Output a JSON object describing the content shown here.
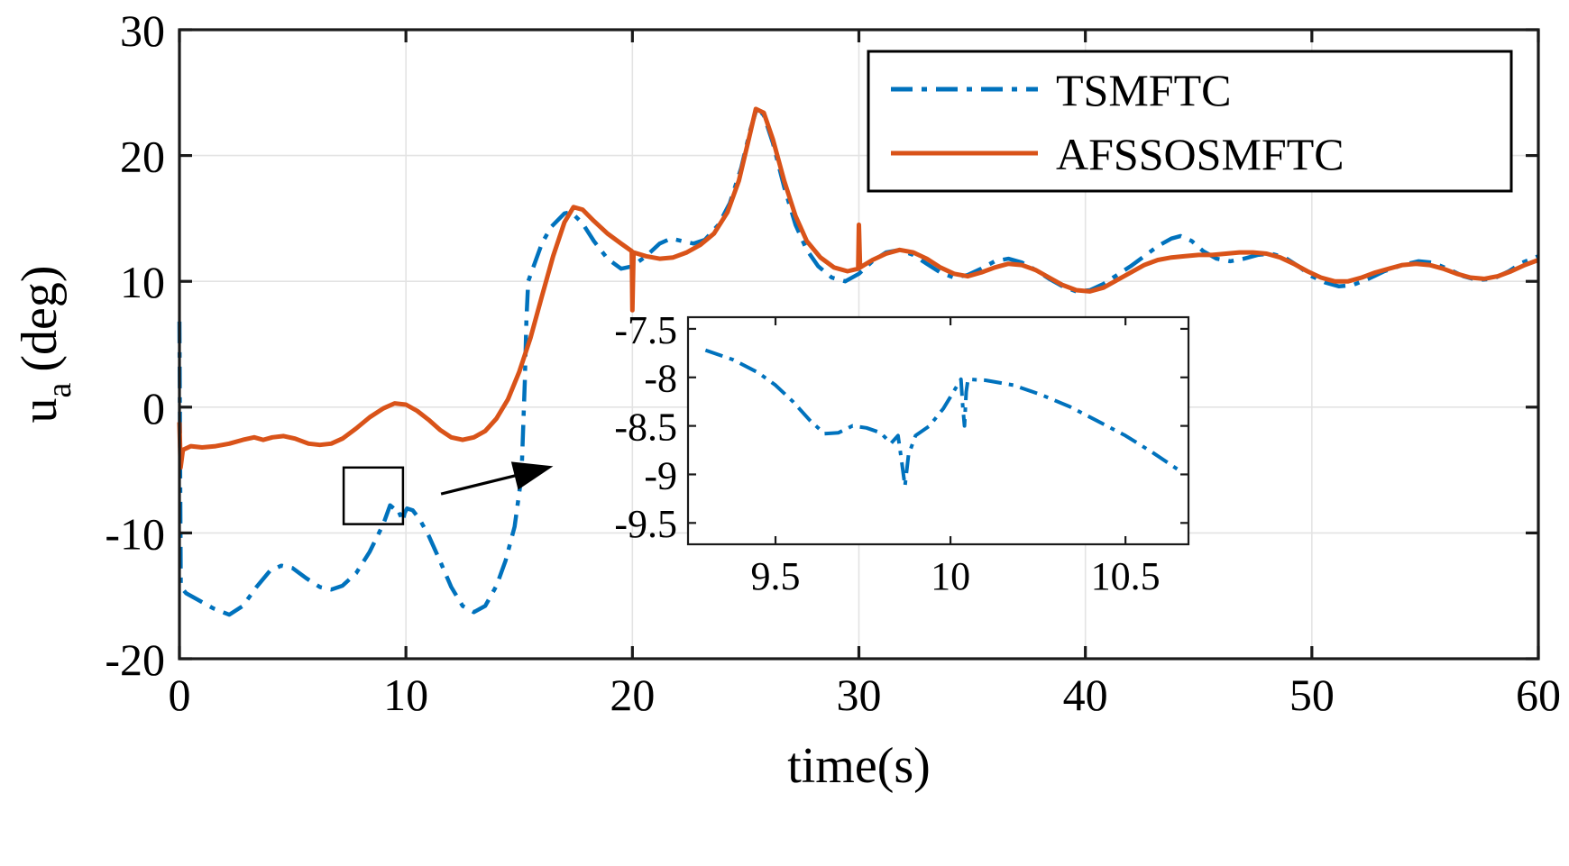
{
  "figure": {
    "background": "#ffffff"
  },
  "chart_data": {
    "type": "line",
    "title": "",
    "xlabel": "time(s)",
    "ylabel": {
      "base": "u",
      "sub": "a",
      "rest": "(deg)"
    },
    "xlim": [
      0,
      60
    ],
    "ylim": [
      -20,
      30
    ],
    "grid": true,
    "axis_color": "#1a1a1a",
    "grid_color": "#e3e3e3",
    "x_ticks": {
      "values": [
        0,
        10,
        20,
        30,
        40,
        50,
        60
      ],
      "labels": [
        "0",
        "10",
        "20",
        "30",
        "40",
        "50",
        "60"
      ]
    },
    "y_ticks": {
      "values": [
        -20,
        -10,
        0,
        10,
        20,
        30
      ],
      "labels": [
        "-20",
        "-10",
        "0",
        "10",
        "20",
        "30"
      ]
    },
    "legend": {
      "position": "top-right",
      "entries": [
        {
          "label": "TSMFTC",
          "color": "#0072BD",
          "style": "dash-dot"
        },
        {
          "label": "AFSSOSMFTC",
          "color": "#D95319",
          "style": "solid"
        }
      ]
    },
    "series": [
      {
        "name": "TSMFTC",
        "color": "#0072BD",
        "style": "dash-dot",
        "width": 4.5,
        "points": [
          [
            0,
            6.8
          ],
          [
            0.03,
            -5
          ],
          [
            0.06,
            -14.3
          ],
          [
            0.3,
            -14.8
          ],
          [
            0.8,
            -15.3
          ],
          [
            1.5,
            -16
          ],
          [
            2.2,
            -16.5
          ],
          [
            2.8,
            -15.8
          ],
          [
            3.4,
            -14.3
          ],
          [
            4,
            -13
          ],
          [
            4.5,
            -12.6
          ],
          [
            5,
            -12.8
          ],
          [
            5.6,
            -13.6
          ],
          [
            6.2,
            -14.3
          ],
          [
            6.7,
            -14.5
          ],
          [
            7.2,
            -14.2
          ],
          [
            7.8,
            -13.2
          ],
          [
            8.4,
            -11.5
          ],
          [
            9,
            -9.3
          ],
          [
            9.3,
            -7.8
          ],
          [
            9.5,
            -8.1
          ],
          [
            9.62,
            -8.6
          ],
          [
            9.75,
            -8.5
          ],
          [
            9.85,
            -9.1
          ],
          [
            9.95,
            -8.4
          ],
          [
            10.05,
            -8.05
          ],
          [
            10.3,
            -8.2
          ],
          [
            10.6,
            -8.9
          ],
          [
            11,
            -10.2
          ],
          [
            11.5,
            -12.2
          ],
          [
            12,
            -14.3
          ],
          [
            12.5,
            -15.8
          ],
          [
            13,
            -16.3
          ],
          [
            13.5,
            -15.8
          ],
          [
            14,
            -14.2
          ],
          [
            14.4,
            -12.2
          ],
          [
            14.8,
            -9.5
          ],
          [
            15.1,
            -5.5
          ],
          [
            15.25,
            2
          ],
          [
            15.32,
            7
          ],
          [
            15.4,
            10
          ],
          [
            15.6,
            11
          ],
          [
            16,
            13
          ],
          [
            16.4,
            14.3
          ],
          [
            17,
            15.4
          ],
          [
            17.3,
            15.5
          ],
          [
            17.8,
            14.6
          ],
          [
            18.3,
            13.2
          ],
          [
            18.9,
            11.8
          ],
          [
            19.5,
            11
          ],
          [
            20,
            11.2
          ],
          [
            20.6,
            12
          ],
          [
            21.2,
            13
          ],
          [
            21.7,
            13.4
          ],
          [
            22.2,
            13.2
          ],
          [
            22.7,
            13
          ],
          [
            23.2,
            13.3
          ],
          [
            23.8,
            14.5
          ],
          [
            24.3,
            16.2
          ],
          [
            24.8,
            19
          ],
          [
            25.2,
            22
          ],
          [
            25.5,
            23.8
          ],
          [
            25.8,
            23.2
          ],
          [
            26.2,
            21
          ],
          [
            26.7,
            17.5
          ],
          [
            27.2,
            14.5
          ],
          [
            27.7,
            12.5
          ],
          [
            28.2,
            11.2
          ],
          [
            28.8,
            10.3
          ],
          [
            29.4,
            10
          ],
          [
            30,
            10.6
          ],
          [
            30.6,
            11.6
          ],
          [
            31.2,
            12.3
          ],
          [
            31.8,
            12.5
          ],
          [
            32.4,
            12.1
          ],
          [
            33,
            11.4
          ],
          [
            33.6,
            10.7
          ],
          [
            34.2,
            10.3
          ],
          [
            34.8,
            10.5
          ],
          [
            35.4,
            11
          ],
          [
            36,
            11.6
          ],
          [
            36.6,
            11.8
          ],
          [
            37.2,
            11.5
          ],
          [
            37.8,
            10.9
          ],
          [
            38.4,
            10.2
          ],
          [
            39,
            9.6
          ],
          [
            39.6,
            9.2
          ],
          [
            40.2,
            9.3
          ],
          [
            40.8,
            9.8
          ],
          [
            41.4,
            10.5
          ],
          [
            42,
            11.2
          ],
          [
            42.6,
            12
          ],
          [
            43.2,
            12.8
          ],
          [
            43.8,
            13.4
          ],
          [
            44.2,
            13.6
          ],
          [
            44.7,
            13.2
          ],
          [
            45.2,
            12.4
          ],
          [
            45.8,
            11.8
          ],
          [
            46.4,
            11.6
          ],
          [
            47,
            11.8
          ],
          [
            47.6,
            12.1
          ],
          [
            48.2,
            12.2
          ],
          [
            48.8,
            11.9
          ],
          [
            49.4,
            11.2
          ],
          [
            50,
            10.4
          ],
          [
            50.6,
            9.9
          ],
          [
            51.2,
            9.6
          ],
          [
            51.8,
            9.7
          ],
          [
            52.5,
            10.2
          ],
          [
            53.2,
            10.8
          ],
          [
            54,
            11.3
          ],
          [
            54.7,
            11.6
          ],
          [
            55.3,
            11.5
          ],
          [
            56,
            11
          ],
          [
            56.7,
            10.4
          ],
          [
            57.3,
            10.1
          ],
          [
            58,
            10.2
          ],
          [
            58.7,
            10.8
          ],
          [
            59.3,
            11.5
          ],
          [
            60,
            12
          ]
        ]
      },
      {
        "name": "AFSSOSMFTC",
        "color": "#D95319",
        "style": "solid",
        "width": 5,
        "points": [
          [
            0,
            -1.2
          ],
          [
            0.05,
            -4.8
          ],
          [
            0.15,
            -3.4
          ],
          [
            0.5,
            -3.1
          ],
          [
            1,
            -3.2
          ],
          [
            1.6,
            -3.1
          ],
          [
            2.2,
            -2.9
          ],
          [
            2.8,
            -2.6
          ],
          [
            3.3,
            -2.4
          ],
          [
            3.7,
            -2.6
          ],
          [
            4.1,
            -2.4
          ],
          [
            4.6,
            -2.3
          ],
          [
            5.1,
            -2.5
          ],
          [
            5.7,
            -2.9
          ],
          [
            6.2,
            -3
          ],
          [
            6.7,
            -2.9
          ],
          [
            7.2,
            -2.5
          ],
          [
            7.8,
            -1.7
          ],
          [
            8.4,
            -0.8
          ],
          [
            9,
            -0.1
          ],
          [
            9.5,
            0.3
          ],
          [
            10,
            0.2
          ],
          [
            10.5,
            -0.3
          ],
          [
            11,
            -1
          ],
          [
            11.5,
            -1.8
          ],
          [
            12,
            -2.4
          ],
          [
            12.5,
            -2.6
          ],
          [
            13,
            -2.4
          ],
          [
            13.5,
            -1.9
          ],
          [
            14,
            -0.9
          ],
          [
            14.5,
            0.6
          ],
          [
            15,
            2.8
          ],
          [
            15.5,
            5.5
          ],
          [
            16,
            8.8
          ],
          [
            16.5,
            12
          ],
          [
            17,
            14.7
          ],
          [
            17.4,
            15.9
          ],
          [
            17.8,
            15.7
          ],
          [
            18.3,
            14.8
          ],
          [
            18.9,
            13.8
          ],
          [
            19.5,
            13
          ],
          [
            19.97,
            12.4
          ],
          [
            20,
            7.7
          ],
          [
            20.05,
            12.3
          ],
          [
            20.6,
            12
          ],
          [
            21.2,
            11.8
          ],
          [
            21.8,
            11.9
          ],
          [
            22.4,
            12.3
          ],
          [
            23,
            12.9
          ],
          [
            23.6,
            13.8
          ],
          [
            24.2,
            15.5
          ],
          [
            24.7,
            18
          ],
          [
            25.1,
            21
          ],
          [
            25.45,
            23.7
          ],
          [
            25.8,
            23.4
          ],
          [
            26.2,
            21.3
          ],
          [
            26.7,
            18
          ],
          [
            27.2,
            15.2
          ],
          [
            27.7,
            13.2
          ],
          [
            28.3,
            11.9
          ],
          [
            28.9,
            11.1
          ],
          [
            29.5,
            10.8
          ],
          [
            29.97,
            11
          ],
          [
            30,
            14.5
          ],
          [
            30.05,
            11.1
          ],
          [
            30.6,
            11.7
          ],
          [
            31.2,
            12.2
          ],
          [
            31.8,
            12.5
          ],
          [
            32.4,
            12.3
          ],
          [
            33,
            11.8
          ],
          [
            33.6,
            11.1
          ],
          [
            34.2,
            10.6
          ],
          [
            34.8,
            10.4
          ],
          [
            35.4,
            10.7
          ],
          [
            36,
            11.1
          ],
          [
            36.6,
            11.4
          ],
          [
            37.2,
            11.3
          ],
          [
            37.8,
            10.9
          ],
          [
            38.4,
            10.3
          ],
          [
            39,
            9.7
          ],
          [
            39.6,
            9.3
          ],
          [
            40.2,
            9.2
          ],
          [
            40.8,
            9.5
          ],
          [
            41.4,
            10.1
          ],
          [
            42,
            10.7
          ],
          [
            42.6,
            11.3
          ],
          [
            43.2,
            11.7
          ],
          [
            43.8,
            11.9
          ],
          [
            44.4,
            12
          ],
          [
            45,
            12.1
          ],
          [
            45.6,
            12.1
          ],
          [
            46.2,
            12.2
          ],
          [
            46.8,
            12.3
          ],
          [
            47.4,
            12.3
          ],
          [
            48,
            12.2
          ],
          [
            48.6,
            11.9
          ],
          [
            49.2,
            11.4
          ],
          [
            49.8,
            10.8
          ],
          [
            50.4,
            10.3
          ],
          [
            51,
            10
          ],
          [
            51.6,
            10
          ],
          [
            52.2,
            10.3
          ],
          [
            52.8,
            10.7
          ],
          [
            53.4,
            11
          ],
          [
            54,
            11.3
          ],
          [
            54.6,
            11.4
          ],
          [
            55.2,
            11.3
          ],
          [
            55.8,
            11
          ],
          [
            56.4,
            10.6
          ],
          [
            57,
            10.3
          ],
          [
            57.6,
            10.2
          ],
          [
            58.2,
            10.4
          ],
          [
            58.8,
            10.8
          ],
          [
            59.4,
            11.3
          ],
          [
            60,
            11.7
          ]
        ]
      }
    ],
    "inset": {
      "xlim": [
        9.25,
        10.68
      ],
      "ylim": [
        -9.72,
        -7.38
      ],
      "x_ticks": {
        "values": [
          9.5,
          10,
          10.5
        ],
        "labels": [
          "9.5",
          "10",
          "10.5"
        ]
      },
      "y_ticks": {
        "values": [
          -7.5,
          -8,
          -8.5,
          -9,
          -9.5
        ],
        "labels": [
          "-7.5",
          "-8",
          "-8.5",
          "-9",
          "-9.5"
        ]
      },
      "series": [
        {
          "name": "TSMFTC",
          "color": "#0072BD",
          "style": "dash-dot",
          "width": 4,
          "points": [
            [
              9.3,
              -7.72
            ],
            [
              9.38,
              -7.82
            ],
            [
              9.45,
              -7.95
            ],
            [
              9.5,
              -8.08
            ],
            [
              9.55,
              -8.25
            ],
            [
              9.6,
              -8.45
            ],
            [
              9.64,
              -8.58
            ],
            [
              9.68,
              -8.57
            ],
            [
              9.72,
              -8.5
            ],
            [
              9.76,
              -8.52
            ],
            [
              9.8,
              -8.57
            ],
            [
              9.83,
              -8.68
            ],
            [
              9.85,
              -8.6
            ],
            [
              9.86,
              -8.85
            ],
            [
              9.87,
              -9.12
            ],
            [
              9.88,
              -8.8
            ],
            [
              9.9,
              -8.6
            ],
            [
              9.94,
              -8.5
            ],
            [
              9.98,
              -8.32
            ],
            [
              10,
              -8.2
            ],
            [
              10.02,
              -8.08
            ],
            [
              10.03,
              -8.02
            ],
            [
              10.035,
              -8.3
            ],
            [
              10.04,
              -8.5
            ],
            [
              10.045,
              -8.15
            ],
            [
              10.05,
              -8.02
            ],
            [
              10.1,
              -8.03
            ],
            [
              10.18,
              -8.08
            ],
            [
              10.26,
              -8.18
            ],
            [
              10.34,
              -8.3
            ],
            [
              10.42,
              -8.45
            ],
            [
              10.5,
              -8.6
            ],
            [
              10.58,
              -8.78
            ],
            [
              10.65,
              -8.95
            ]
          ]
        }
      ]
    },
    "annotations": {
      "zoom_box": {
        "t0": 7.25,
        "t1": 9.87,
        "u0": -4.8,
        "u1": -9.3,
        "color": "#000000"
      },
      "arrow": {
        "from_t": 11.55,
        "from_u": -6.9,
        "to_t": 16.5,
        "to_u": -4.7,
        "color": "#000000"
      }
    }
  }
}
